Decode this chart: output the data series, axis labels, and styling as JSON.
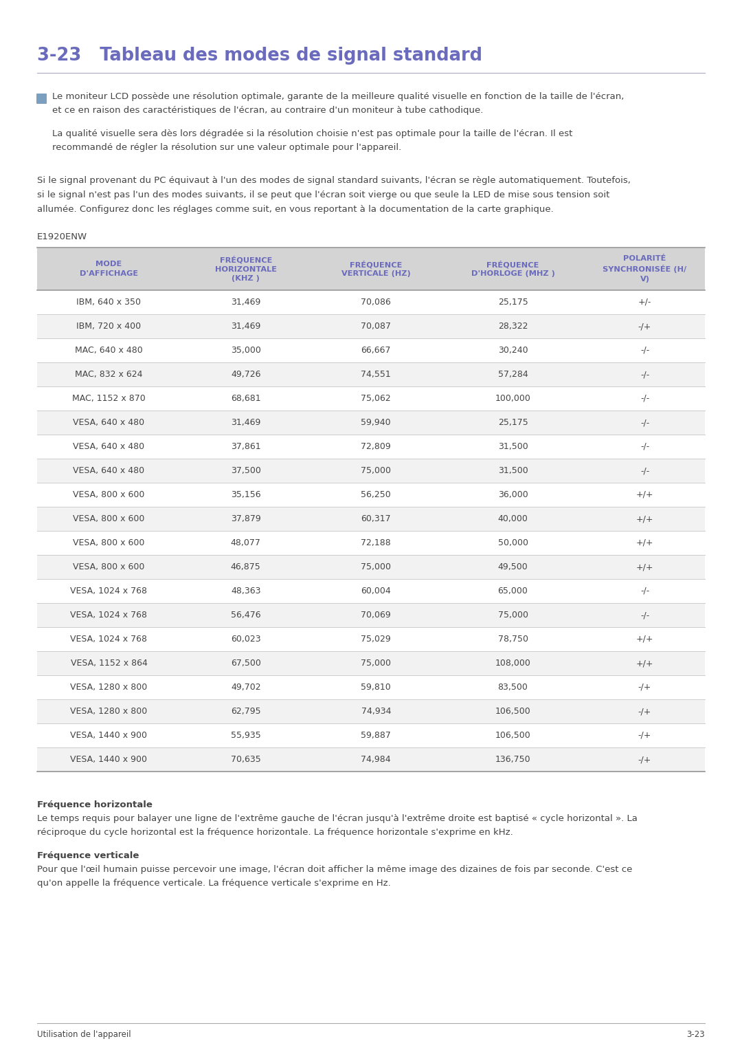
{
  "title": "3-23   Tableau des modes de signal standard",
  "title_color": "#6b6bbd",
  "note_icon_color": "#7a9fbf",
  "note_text1_line1": "Le moniteur LCD possède une résolution optimale, garante de la meilleure qualité visuelle en fonction de la taille de l'écran,",
  "note_text1_line2": "et ce en raison des caractéristiques de l'écran, au contraire d'un moniteur à tube cathodique.",
  "note_text2_line1": "La qualité visuelle sera dès lors dégradée si la résolution choisie n'est pas optimale pour la taille de l'écran. Il est",
  "note_text2_line2": "recommandé de régler la résolution sur une valeur optimale pour l'appareil.",
  "body_line1": "Si le signal provenant du PC équivaut à l'un des modes de signal standard suivants, l'écran se règle automatiquement. Toutefois,",
  "body_line2": "si le signal n'est pas l'un des modes suivants, il se peut que l'écran soit vierge ou que seule la LED de mise sous tension soit",
  "body_line3": "allumée. Configurez donc les réglages comme suit, en vous reportant à la documentation de la carte graphique.",
  "model_label": "E1920ENW",
  "col_headers": [
    "MODE\nD'AFFICHAGE",
    "FRÉQUENCE\nHORIZONTALE\n(KHZ )",
    "FRÉQUENCE\nVERTICALE (HZ)",
    "FRÉQUENCE\nD'HORLOGE (MHZ )",
    "POLARITÉ\nSYNCHRONISÉE (H/\nV)"
  ],
  "header_bg": "#d4d4d4",
  "header_text_color": "#6b6bbd",
  "row_bg_even": "#ffffff",
  "row_bg_odd": "#f2f2f2",
  "row_text_color": "#444444",
  "rows": [
    [
      "IBM, 640 x 350",
      "31,469",
      "70,086",
      "25,175",
      "+/-"
    ],
    [
      "IBM, 720 x 400",
      "31,469",
      "70,087",
      "28,322",
      "-/+"
    ],
    [
      "MAC, 640 x 480",
      "35,000",
      "66,667",
      "30,240",
      "-/-"
    ],
    [
      "MAC, 832 x 624",
      "49,726",
      "74,551",
      "57,284",
      "-/-"
    ],
    [
      "MAC, 1152 x 870",
      "68,681",
      "75,062",
      "100,000",
      "-/-"
    ],
    [
      "VESA, 640 x 480",
      "31,469",
      "59,940",
      "25,175",
      "-/-"
    ],
    [
      "VESA, 640 x 480",
      "37,861",
      "72,809",
      "31,500",
      "-/-"
    ],
    [
      "VESA, 640 x 480",
      "37,500",
      "75,000",
      "31,500",
      "-/-"
    ],
    [
      "VESA, 800 x 600",
      "35,156",
      "56,250",
      "36,000",
      "+/+"
    ],
    [
      "VESA, 800 x 600",
      "37,879",
      "60,317",
      "40,000",
      "+/+"
    ],
    [
      "VESA, 800 x 600",
      "48,077",
      "72,188",
      "50,000",
      "+/+"
    ],
    [
      "VESA, 800 x 600",
      "46,875",
      "75,000",
      "49,500",
      "+/+"
    ],
    [
      "VESA, 1024 x 768",
      "48,363",
      "60,004",
      "65,000",
      "-/-"
    ],
    [
      "VESA, 1024 x 768",
      "56,476",
      "70,069",
      "75,000",
      "-/-"
    ],
    [
      "VESA, 1024 x 768",
      "60,023",
      "75,029",
      "78,750",
      "+/+"
    ],
    [
      "VESA, 1152 x 864",
      "67,500",
      "75,000",
      "108,000",
      "+/+"
    ],
    [
      "VESA, 1280 x 800",
      "49,702",
      "59,810",
      "83,500",
      "-/+"
    ],
    [
      "VESA, 1280 x 800",
      "62,795",
      "74,934",
      "106,500",
      "-/+"
    ],
    [
      "VESA, 1440 x 900",
      "55,935",
      "59,887",
      "106,500",
      "-/+"
    ],
    [
      "VESA, 1440 x 900",
      "70,635",
      "74,984",
      "136,750",
      "-/+"
    ]
  ],
  "footer_section1_title": "Fréquence horizontale",
  "footer_section1_line1": "Le temps requis pour balayer une ligne de l'extrême gauche de l'écran jusqu'à l'extrême droite est baptisé « cycle horizontal ». La",
  "footer_section1_line2": "réciproque du cycle horizontal est la fréquence horizontale. La fréquence horizontale s'exprime en kHz.",
  "footer_section2_title": "Fréquence verticale",
  "footer_section2_line1": "Pour que l'œil humain puisse percevoir une image, l'écran doit afficher la même image des dizaines de fois par seconde. C'est ce",
  "footer_section2_line2": "qu'on appelle la fréquence verticale. La fréquence verticale s'exprime en Hz.",
  "page_footer_left": "Utilisation de l'appareil",
  "page_footer_right": "3-23",
  "bg_color": "#ffffff",
  "body_text_color": "#444444",
  "title_underline_color": "#b0b0c8",
  "table_border_color": "#999999",
  "table_line_color": "#cccccc",
  "footer_line_color": "#aaaaaa"
}
